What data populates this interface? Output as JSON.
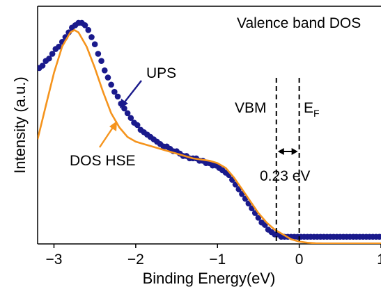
{
  "chart_data": {
    "type": "line",
    "title": "Valence band DOS",
    "xlabel": "Binding Energy(eV)",
    "ylabel": "Intensity (a.u.)",
    "xlim": [
      -3.2,
      1.0
    ],
    "ylim": [
      0,
      1.0
    ],
    "xticks": [
      -3,
      -2,
      -1,
      0,
      1
    ],
    "yticks_shown": false,
    "grid": false,
    "series": [
      {
        "name": "UPS",
        "style": "markers",
        "color": "#1a1a8c",
        "x": [
          -3.18,
          -3.14,
          -3.1,
          -3.06,
          -3.02,
          -2.98,
          -2.94,
          -2.9,
          -2.86,
          -2.82,
          -2.78,
          -2.74,
          -2.7,
          -2.66,
          -2.62,
          -2.58,
          -2.54,
          -2.5,
          -2.46,
          -2.42,
          -2.38,
          -2.34,
          -2.3,
          -2.26,
          -2.22,
          -2.18,
          -2.14,
          -2.1,
          -2.06,
          -2.02,
          -1.98,
          -1.94,
          -1.9,
          -1.86,
          -1.82,
          -1.78,
          -1.74,
          -1.7,
          -1.66,
          -1.62,
          -1.58,
          -1.54,
          -1.5,
          -1.46,
          -1.42,
          -1.38,
          -1.34,
          -1.3,
          -1.26,
          -1.22,
          -1.18,
          -1.14,
          -1.1,
          -1.06,
          -1.02,
          -0.98,
          -0.94,
          -0.9,
          -0.86,
          -0.82,
          -0.78,
          -0.74,
          -0.7,
          -0.66,
          -0.62,
          -0.58,
          -0.54,
          -0.5,
          -0.46,
          -0.42,
          -0.38,
          -0.34,
          -0.3,
          -0.26,
          -0.22,
          -0.18,
          -0.14,
          -0.1,
          -0.06,
          -0.02,
          0.02,
          0.06,
          0.1,
          0.14,
          0.18,
          0.22,
          0.26,
          0.3,
          0.34,
          0.38,
          0.42,
          0.46,
          0.5,
          0.54,
          0.58,
          0.62,
          0.66,
          0.7,
          0.74,
          0.78,
          0.82,
          0.86,
          0.9,
          0.94,
          0.98
        ],
        "y": [
          0.74,
          0.75,
          0.77,
          0.78,
          0.8,
          0.82,
          0.83,
          0.85,
          0.87,
          0.89,
          0.91,
          0.92,
          0.93,
          0.93,
          0.92,
          0.9,
          0.87,
          0.84,
          0.8,
          0.77,
          0.73,
          0.7,
          0.67,
          0.64,
          0.62,
          0.59,
          0.57,
          0.55,
          0.53,
          0.51,
          0.5,
          0.48,
          0.47,
          0.46,
          0.45,
          0.44,
          0.43,
          0.42,
          0.41,
          0.41,
          0.4,
          0.39,
          0.39,
          0.38,
          0.37,
          0.37,
          0.36,
          0.36,
          0.36,
          0.35,
          0.35,
          0.34,
          0.34,
          0.33,
          0.33,
          0.32,
          0.31,
          0.3,
          0.29,
          0.27,
          0.25,
          0.23,
          0.21,
          0.19,
          0.17,
          0.15,
          0.13,
          0.11,
          0.09,
          0.08,
          0.06,
          0.05,
          0.04,
          0.04,
          0.03,
          0.03,
          0.03,
          0.03,
          0.03,
          0.03,
          0.03,
          0.03,
          0.03,
          0.03,
          0.03,
          0.03,
          0.03,
          0.03,
          0.03,
          0.03,
          0.03,
          0.03,
          0.03,
          0.03,
          0.03,
          0.03,
          0.03,
          0.03,
          0.03,
          0.03,
          0.03,
          0.03,
          0.03,
          0.03,
          0.03
        ]
      },
      {
        "name": "DOS HSE",
        "style": "line",
        "color": "#f5941d",
        "x": [
          -3.2,
          -3.1,
          -3.0,
          -2.9,
          -2.8,
          -2.75,
          -2.7,
          -2.6,
          -2.5,
          -2.4,
          -2.3,
          -2.2,
          -2.1,
          -2.0,
          -1.9,
          -1.8,
          -1.7,
          -1.6,
          -1.5,
          -1.4,
          -1.3,
          -1.2,
          -1.1,
          -1.0,
          -0.9,
          -0.8,
          -0.7,
          -0.6,
          -0.5,
          -0.4,
          -0.3,
          -0.2,
          -0.1,
          0.0,
          0.1,
          0.2,
          0.3,
          0.4,
          0.5,
          0.6,
          0.7,
          0.8,
          0.9,
          1.0
        ],
        "y": [
          0.44,
          0.58,
          0.72,
          0.83,
          0.89,
          0.9,
          0.89,
          0.83,
          0.74,
          0.64,
          0.55,
          0.49,
          0.45,
          0.43,
          0.42,
          0.41,
          0.4,
          0.39,
          0.38,
          0.37,
          0.36,
          0.355,
          0.35,
          0.34,
          0.32,
          0.28,
          0.23,
          0.18,
          0.13,
          0.09,
          0.06,
          0.04,
          0.02,
          0.01,
          0.005,
          0.003,
          0.002,
          0.002,
          0.002,
          0.002,
          0.002,
          0.002,
          0.002,
          0.002
        ]
      }
    ],
    "annotations": {
      "ups_label": "UPS",
      "dos_label": "DOS HSE",
      "vbm_label": "VBM",
      "ef_label_main": "E",
      "ef_label_sub": "F",
      "gap_label": "0.23 eV",
      "vbm_x": -0.28,
      "ef_x": 0.0
    }
  }
}
